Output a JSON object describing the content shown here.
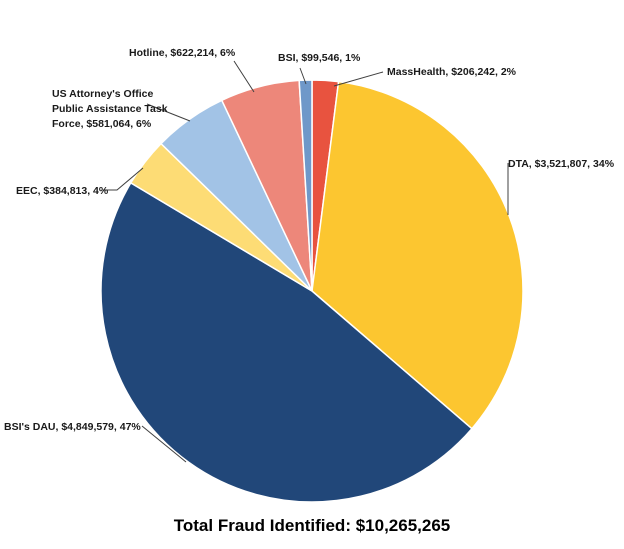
{
  "chart_data": {
    "type": "pie",
    "title": "Total Fraud Identified: $10,265,265",
    "slices": [
      {
        "name": "MassHealth",
        "value": 206242,
        "percent": 2,
        "label": "MassHealth, $206,242, 2%",
        "color": "#e8533f"
      },
      {
        "name": "DTA",
        "value": 3521807,
        "percent": 34,
        "label": "DTA, $3,521,807, 34%",
        "color": "#fcc630"
      },
      {
        "name": "BSI's DAU",
        "value": 4849579,
        "percent": 47,
        "label": "BSI's DAU, $4,849,579, 47%",
        "color": "#214779"
      },
      {
        "name": "EEC",
        "value": 384813,
        "percent": 4,
        "label": "EEC, $384,813, 4%",
        "color": "#fddc75"
      },
      {
        "name": "US Attorney's Office Public Assistance Task Force",
        "value": 581064,
        "percent": 6,
        "label_lines": [
          "US Attorney's Office",
          "Public Assistance Task",
          "Force, $581,064, 6%"
        ],
        "color": "#a2c3e6"
      },
      {
        "name": "Hotline",
        "value": 622214,
        "percent": 6,
        "label": "Hotline, $622,214, 6%",
        "color": "#ed877a"
      },
      {
        "name": "BSI",
        "value": 99546,
        "percent": 1,
        "label": "BSI, $99,546, 1%",
        "color": "#6f98c9"
      }
    ],
    "start": "top",
    "direction": "clockwise"
  }
}
